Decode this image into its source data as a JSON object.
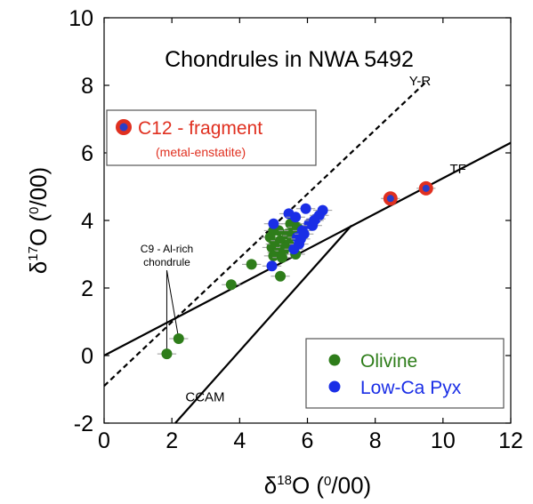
{
  "chart_data": {
    "type": "scatter",
    "title": "Chondrules in NWA 5492",
    "xlabel_prefix": "δ",
    "xlabel_sup": "18",
    "xlabel_rest": "O (",
    "xlabel_unit_num": "0",
    "xlabel_unit_den": "/00",
    "xlabel_close": ")",
    "ylabel_prefix": "δ",
    "ylabel_sup": "17",
    "ylabel_rest": "O (",
    "ylabel_unit_num": "0",
    "ylabel_unit_den": "/00",
    "ylabel_close": ")",
    "xlim": [
      0,
      12
    ],
    "ylim": [
      -2,
      10
    ],
    "x_ticks": [
      0,
      2,
      4,
      6,
      8,
      10,
      12
    ],
    "x_tick_labels": [
      "0",
      "2",
      "4",
      "6",
      "8",
      "10",
      "12"
    ],
    "y_ticks": [
      -2,
      0,
      2,
      4,
      6,
      8,
      10
    ],
    "y_tick_labels": [
      "-2",
      "0",
      "2",
      "4",
      "6",
      "8",
      "10"
    ],
    "grid": false,
    "reference_lines": [
      {
        "label": "Y-R",
        "style": "dashed",
        "x": [
          0,
          9.5
        ],
        "y": [
          -0.9,
          8.1
        ],
        "label_x": 9.0,
        "label_y": 8.0
      },
      {
        "label": "TF",
        "style": "solid",
        "x": [
          0,
          12
        ],
        "y": [
          0,
          6.3
        ],
        "label_x": 10.2,
        "label_y": 5.4
      },
      {
        "label": "CCAM",
        "style": "solid",
        "x": [
          2.1,
          7.3
        ],
        "y": [
          -2.0,
          3.85
        ],
        "label_x": 2.4,
        "label_y": -1.35
      }
    ],
    "series": [
      {
        "name": "Olivine",
        "color": "#2e7d1a",
        "points": [
          [
            1.85,
            0.05
          ],
          [
            2.2,
            0.5
          ],
          [
            3.75,
            2.1
          ],
          [
            4.35,
            2.7
          ],
          [
            4.95,
            3.2
          ],
          [
            4.9,
            3.5
          ],
          [
            5.05,
            3.3
          ],
          [
            5.2,
            3.4
          ],
          [
            5.1,
            3.05
          ],
          [
            5.3,
            3.1
          ],
          [
            5.0,
            2.95
          ],
          [
            5.25,
            2.9
          ],
          [
            5.4,
            3.6
          ],
          [
            5.45,
            3.3
          ],
          [
            5.5,
            3.9
          ],
          [
            5.6,
            3.7
          ],
          [
            5.65,
            3.0
          ],
          [
            5.15,
            3.7
          ],
          [
            5.2,
            2.35
          ],
          [
            5.0,
            3.7
          ],
          [
            5.35,
            3.2
          ],
          [
            5.7,
            3.8
          ],
          [
            5.55,
            3.55
          ]
        ]
      },
      {
        "name": "Low-Ca Pyx",
        "color": "#1a2ee6",
        "points": [
          [
            4.95,
            2.65
          ],
          [
            5.0,
            3.9
          ],
          [
            5.45,
            4.2
          ],
          [
            5.6,
            3.15
          ],
          [
            5.7,
            3.5
          ],
          [
            5.75,
            3.3
          ],
          [
            5.85,
            3.7
          ],
          [
            5.9,
            3.6
          ],
          [
            5.95,
            4.35
          ],
          [
            6.05,
            3.9
          ],
          [
            6.15,
            3.85
          ],
          [
            6.25,
            4.05
          ],
          [
            6.35,
            4.15
          ],
          [
            6.45,
            4.3
          ],
          [
            5.8,
            3.45
          ],
          [
            6.2,
            4.0
          ],
          [
            5.65,
            4.1
          ]
        ]
      },
      {
        "name": "C12 - fragment",
        "sublabel": "(metal-enstatite)",
        "color": "#e03020",
        "inner_color": "#2a3ec8",
        "points": [
          [
            8.45,
            4.65
          ],
          [
            9.5,
            4.95
          ]
        ]
      }
    ],
    "annotation": {
      "line1": "C9 - Al-rich",
      "line2": "chondrule",
      "text_x": 1.85,
      "text_y": 3.05,
      "targets": [
        [
          1.85,
          0.05
        ],
        [
          2.2,
          0.5
        ]
      ]
    },
    "legend_top_left": {
      "entry": "C12 - fragment",
      "sub": "(metal-enstatite)"
    },
    "legend_bottom_right": [
      "Olivine",
      "Low-Ca Pyx"
    ]
  }
}
